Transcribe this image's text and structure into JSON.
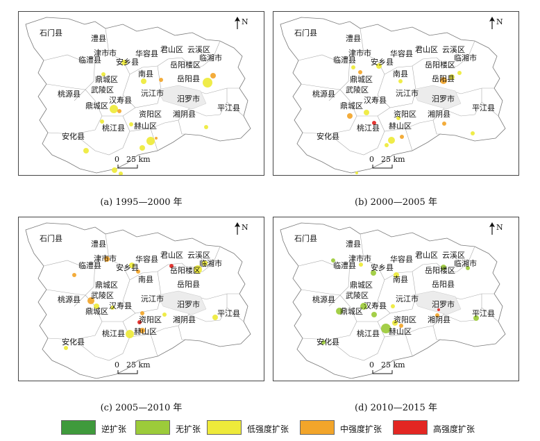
{
  "panels": [
    {
      "caption": "(a) 1995—2000 年",
      "patches": [
        {
          "x": 152,
          "y": 73,
          "r": 4,
          "c": "low"
        },
        {
          "x": 122,
          "y": 90,
          "r": 3,
          "c": "low"
        },
        {
          "x": 180,
          "y": 100,
          "r": 4,
          "c": "low"
        },
        {
          "x": 205,
          "y": 98,
          "r": 3,
          "c": "mid"
        },
        {
          "x": 272,
          "y": 102,
          "r": 7,
          "c": "low"
        },
        {
          "x": 280,
          "y": 92,
          "r": 4,
          "c": "mid"
        },
        {
          "x": 137,
          "y": 140,
          "r": 6,
          "c": "low"
        },
        {
          "x": 145,
          "y": 143,
          "r": 3,
          "c": "mid"
        },
        {
          "x": 120,
          "y": 158,
          "r": 3,
          "c": "low"
        },
        {
          "x": 162,
          "y": 162,
          "r": 3,
          "c": "low"
        },
        {
          "x": 190,
          "y": 186,
          "r": 6,
          "c": "low"
        },
        {
          "x": 178,
          "y": 196,
          "r": 4,
          "c": "low"
        },
        {
          "x": 198,
          "y": 182,
          "r": 2,
          "c": "mid"
        },
        {
          "x": 270,
          "y": 166,
          "r": 3,
          "c": "low"
        },
        {
          "x": 97,
          "y": 200,
          "r": 4,
          "c": "low"
        },
        {
          "x": 138,
          "y": 228,
          "r": 4,
          "c": "low"
        },
        {
          "x": 147,
          "y": 233,
          "r": 3,
          "c": "low"
        }
      ]
    },
    {
      "caption": "(b) 2000—2005 年",
      "patches": [
        {
          "x": 115,
          "y": 80,
          "r": 3,
          "c": "low"
        },
        {
          "x": 125,
          "y": 87,
          "r": 3,
          "c": "mid"
        },
        {
          "x": 152,
          "y": 78,
          "r": 4,
          "c": "low"
        },
        {
          "x": 183,
          "y": 100,
          "r": 3,
          "c": "low"
        },
        {
          "x": 245,
          "y": 99,
          "r": 5,
          "c": "mid"
        },
        {
          "x": 257,
          "y": 94,
          "r": 4,
          "c": "low"
        },
        {
          "x": 268,
          "y": 88,
          "r": 3,
          "c": "low"
        },
        {
          "x": 110,
          "y": 150,
          "r": 4,
          "c": "mid"
        },
        {
          "x": 134,
          "y": 145,
          "r": 4,
          "c": "low"
        },
        {
          "x": 145,
          "y": 160,
          "r": 3,
          "c": "high"
        },
        {
          "x": 180,
          "y": 153,
          "r": 3,
          "c": "low"
        },
        {
          "x": 170,
          "y": 185,
          "r": 5,
          "c": "low"
        },
        {
          "x": 185,
          "y": 180,
          "r": 3,
          "c": "mid"
        },
        {
          "x": 163,
          "y": 192,
          "r": 3,
          "c": "low"
        },
        {
          "x": 246,
          "y": 161,
          "r": 3,
          "c": "mid"
        },
        {
          "x": 287,
          "y": 175,
          "r": 3,
          "c": "low"
        },
        {
          "x": 120,
          "y": 232,
          "r": 2,
          "c": "low"
        }
      ]
    },
    {
      "caption": "(c) 2005—2010 年",
      "patches": [
        {
          "x": 80,
          "y": 83,
          "r": 3,
          "c": "mid"
        },
        {
          "x": 127,
          "y": 60,
          "r": 4,
          "c": "mid"
        },
        {
          "x": 163,
          "y": 69,
          "r": 4,
          "c": "low"
        },
        {
          "x": 172,
          "y": 78,
          "r": 3,
          "c": "mid"
        },
        {
          "x": 220,
          "y": 70,
          "r": 3,
          "c": "high"
        },
        {
          "x": 258,
          "y": 75,
          "r": 6,
          "c": "low"
        },
        {
          "x": 268,
          "y": 66,
          "r": 4,
          "c": "low"
        },
        {
          "x": 104,
          "y": 120,
          "r": 5,
          "c": "mid"
        },
        {
          "x": 112,
          "y": 128,
          "r": 4,
          "c": "low"
        },
        {
          "x": 135,
          "y": 130,
          "r": 3,
          "c": "low"
        },
        {
          "x": 178,
          "y": 138,
          "r": 3,
          "c": "mid"
        },
        {
          "x": 160,
          "y": 168,
          "r": 6,
          "c": "low"
        },
        {
          "x": 178,
          "y": 163,
          "r": 4,
          "c": "mid"
        },
        {
          "x": 174,
          "y": 151,
          "r": 3,
          "c": "high"
        },
        {
          "x": 210,
          "y": 140,
          "r": 3,
          "c": "low"
        },
        {
          "x": 283,
          "y": 144,
          "r": 4,
          "c": "low"
        },
        {
          "x": 68,
          "y": 188,
          "r": 3,
          "c": "low"
        }
      ]
    },
    {
      "caption": "(d) 2010—2015 年",
      "patches": [
        {
          "x": 86,
          "y": 62,
          "r": 3,
          "c": "none"
        },
        {
          "x": 126,
          "y": 68,
          "r": 3,
          "c": "low"
        },
        {
          "x": 144,
          "y": 80,
          "r": 4,
          "c": "none"
        },
        {
          "x": 177,
          "y": 83,
          "r": 4,
          "c": "low"
        },
        {
          "x": 245,
          "y": 72,
          "r": 4,
          "c": "none"
        },
        {
          "x": 280,
          "y": 73,
          "r": 3,
          "c": "none"
        },
        {
          "x": 95,
          "y": 135,
          "r": 5,
          "c": "none"
        },
        {
          "x": 130,
          "y": 128,
          "r": 5,
          "c": "none"
        },
        {
          "x": 145,
          "y": 140,
          "r": 4,
          "c": "none"
        },
        {
          "x": 172,
          "y": 128,
          "r": 3,
          "c": "low"
        },
        {
          "x": 162,
          "y": 160,
          "r": 7,
          "c": "none"
        },
        {
          "x": 175,
          "y": 152,
          "r": 4,
          "c": "low"
        },
        {
          "x": 184,
          "y": 156,
          "r": 3,
          "c": "mid"
        },
        {
          "x": 236,
          "y": 141,
          "r": 3,
          "c": "mid"
        },
        {
          "x": 238,
          "y": 133,
          "r": 2,
          "c": "high"
        },
        {
          "x": 292,
          "y": 145,
          "r": 4,
          "c": "none"
        },
        {
          "x": 72,
          "y": 180,
          "r": 3,
          "c": "none"
        }
      ]
    }
  ],
  "labels": {
    "shimen": "石门县",
    "lixian": "澧县",
    "jinshi": "津市市",
    "linli": "临澧县",
    "anxiang": "安乡县",
    "huarong": "华容县",
    "junshan": "君山区",
    "yunxi": "云溪区",
    "linxiang": "临湘市",
    "yueyanglou": "岳阳楼区",
    "nanxian": "南县",
    "yueyang": "岳阳县",
    "dingcheng": "鼎城区",
    "taoyuan": "桃源县",
    "wuling": "武陵区",
    "hanshou": "汉寿县",
    "yuanjiang": "沅江市",
    "miluo": "汨罗市",
    "pingjiang": "平江县",
    "ziyang": "资阳区",
    "xiangyin": "湘阴县",
    "taojiang": "桃江县",
    "heshan": "赫山区",
    "anhua": "安化县"
  },
  "north_label": "N",
  "scale": {
    "zero": "0",
    "value": "25 km"
  },
  "legend": [
    {
      "label": "逆扩张",
      "color": "#3f9a3c",
      "key": "reverse"
    },
    {
      "label": "无扩张",
      "color": "#9ccb3a",
      "key": "none"
    },
    {
      "label": "低强度扩张",
      "color": "#eeea3a",
      "key": "low"
    },
    {
      "label": "中强度扩张",
      "color": "#f2a52a",
      "key": "mid"
    },
    {
      "label": "高强度扩张",
      "color": "#e32622",
      "key": "high"
    }
  ]
}
